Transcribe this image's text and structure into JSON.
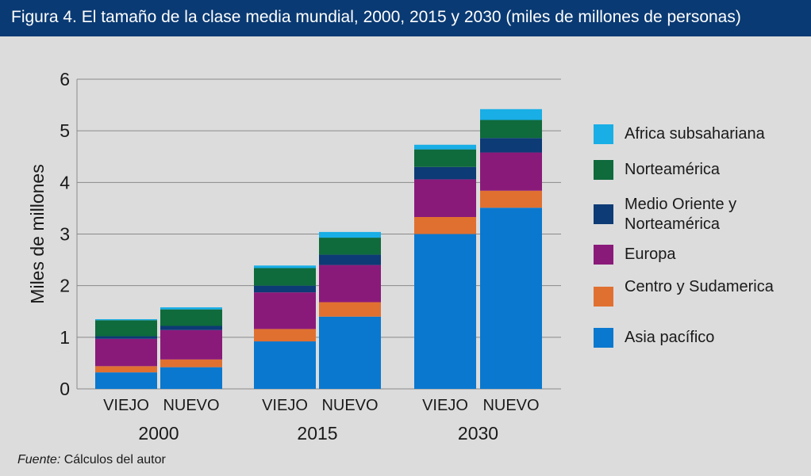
{
  "header": {
    "title": "Figura 4. El tamaño de la clase media mundial, 2000, 2015 y 2030 (miles de millones de personas)"
  },
  "footer": {
    "source_label": "Fuente:",
    "source_text": "Cálculos del autor"
  },
  "colors": {
    "header_bg": "#0a3a73",
    "background": "#dcdcdc"
  },
  "chart_data": {
    "type": "bar",
    "stacked": true,
    "ylabel": "Miles de millones",
    "ylim": [
      0,
      6
    ],
    "yticks": [
      0,
      1,
      2,
      3,
      4,
      5,
      6
    ],
    "grid": true,
    "legend_position": "right",
    "groups": [
      {
        "label": "2000",
        "categories": [
          "VIEJO",
          "NUEVO"
        ]
      },
      {
        "label": "2015",
        "categories": [
          "VIEJO",
          "NUEVO"
        ]
      },
      {
        "label": "2030",
        "categories": [
          "VIEJO",
          "NUEVO"
        ]
      }
    ],
    "bars": [
      "2000 VIEJO",
      "2000 NUEVO",
      "2015 VIEJO",
      "2015 NUEVO",
      "2030 VIEJO",
      "2030 NUEVO"
    ],
    "series": [
      {
        "name": "Asia pacífico",
        "color": "#0a78cf",
        "values": [
          0.32,
          0.42,
          0.92,
          1.4,
          3.0,
          3.51
        ]
      },
      {
        "name": "Centro y Sudamerica",
        "color": "#e07030",
        "values": [
          0.12,
          0.15,
          0.24,
          0.28,
          0.33,
          0.33
        ]
      },
      {
        "name": "Europa",
        "color": "#8a1a7a",
        "values": [
          0.53,
          0.57,
          0.71,
          0.72,
          0.73,
          0.74
        ]
      },
      {
        "name": "Medio Oriente y Norteamérica",
        "color": "#0d3b75",
        "values": [
          0.05,
          0.08,
          0.13,
          0.2,
          0.24,
          0.28
        ]
      },
      {
        "name": "Norteamérica",
        "color": "#0f6a3c",
        "values": [
          0.31,
          0.32,
          0.34,
          0.33,
          0.34,
          0.35
        ]
      },
      {
        "name": "Africa subsahariana",
        "color": "#19aee6",
        "values": [
          0.02,
          0.04,
          0.05,
          0.11,
          0.09,
          0.21
        ]
      }
    ]
  }
}
